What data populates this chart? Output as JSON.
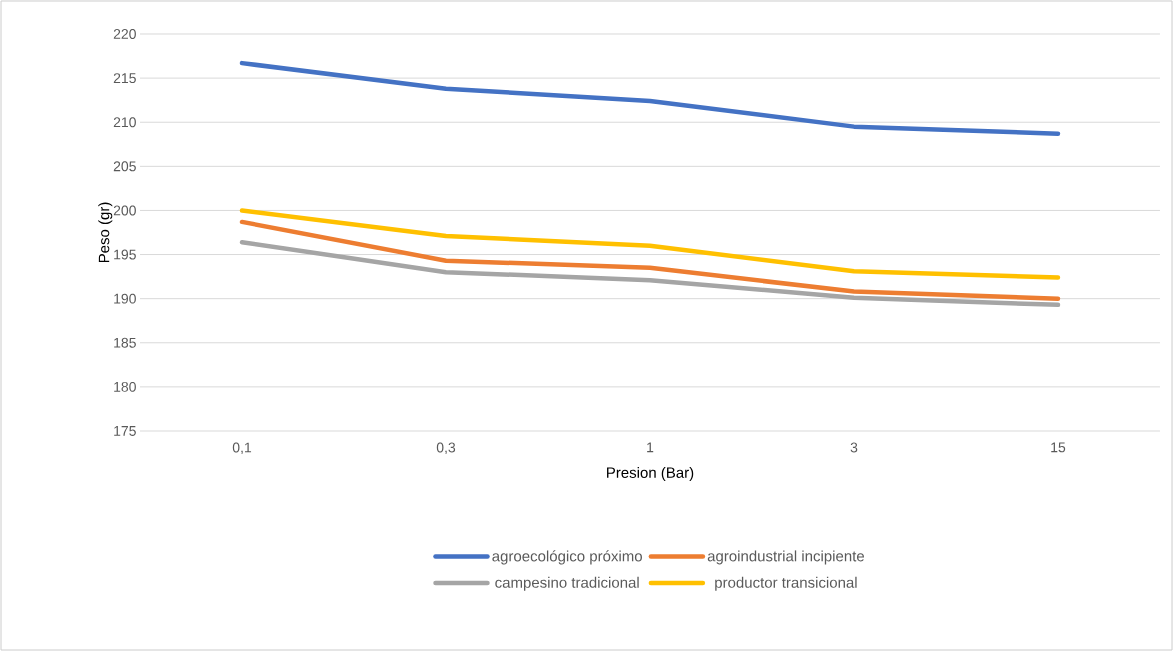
{
  "chart_data": {
    "type": "line",
    "xlabel": "Presion (Bar)",
    "ylabel": "Peso (gr)",
    "categories": [
      "0,1",
      "0,3",
      "1",
      "3",
      "15"
    ],
    "series": [
      {
        "name": "agroecológico próximo",
        "color": "#4472c4",
        "values": [
          216.7,
          213.8,
          212.4,
          209.5,
          208.7
        ]
      },
      {
        "name": "agroindustrial incipiente",
        "color": "#ed7d31",
        "values": [
          198.7,
          194.3,
          193.5,
          190.8,
          190.0
        ]
      },
      {
        "name": "campesino tradicional",
        "color": "#a5a5a5",
        "values": [
          196.4,
          193.0,
          192.1,
          190.1,
          189.3
        ]
      },
      {
        "name": "productor transicional",
        "color": "#ffc000",
        "values": [
          200.0,
          197.1,
          196.0,
          193.1,
          192.4
        ]
      }
    ],
    "ylim": [
      175,
      220
    ],
    "yticks": [
      175,
      180,
      185,
      190,
      195,
      200,
      205,
      210,
      215,
      220
    ],
    "grid": "y",
    "legend": "bottom",
    "marker": "none",
    "line_style": "solid"
  }
}
